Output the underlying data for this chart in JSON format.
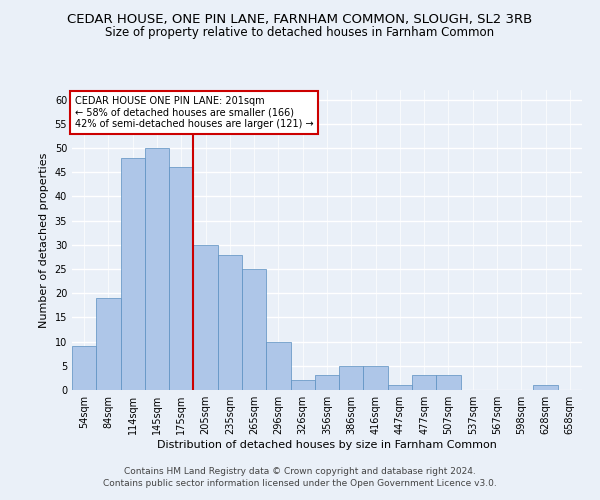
{
  "title": "CEDAR HOUSE, ONE PIN LANE, FARNHAM COMMON, SLOUGH, SL2 3RB",
  "subtitle": "Size of property relative to detached houses in Farnham Common",
  "xlabel": "Distribution of detached houses by size in Farnham Common",
  "ylabel": "Number of detached properties",
  "categories": [
    "54sqm",
    "84sqm",
    "114sqm",
    "145sqm",
    "175sqm",
    "205sqm",
    "235sqm",
    "265sqm",
    "296sqm",
    "326sqm",
    "356sqm",
    "386sqm",
    "416sqm",
    "447sqm",
    "477sqm",
    "507sqm",
    "537sqm",
    "567sqm",
    "598sqm",
    "628sqm",
    "658sqm"
  ],
  "values": [
    9,
    19,
    48,
    50,
    46,
    30,
    28,
    25,
    10,
    2,
    3,
    5,
    5,
    1,
    3,
    3,
    0,
    0,
    0,
    1,
    0
  ],
  "bar_color": "#aec6e8",
  "bar_edge_color": "#5a8fc0",
  "annotation_text": "CEDAR HOUSE ONE PIN LANE: 201sqm\n← 58% of detached houses are smaller (166)\n42% of semi-detached houses are larger (121) →",
  "annotation_box_color": "#ffffff",
  "annotation_box_edge": "#cc0000",
  "vline_color": "#cc0000",
  "ylim": [
    0,
    62
  ],
  "yticks": [
    0,
    5,
    10,
    15,
    20,
    25,
    30,
    35,
    40,
    45,
    50,
    55,
    60
  ],
  "footer1": "Contains HM Land Registry data © Crown copyright and database right 2024.",
  "footer2": "Contains public sector information licensed under the Open Government Licence v3.0.",
  "background_color": "#eaf0f8",
  "grid_color": "#ffffff",
  "title_fontsize": 9.5,
  "subtitle_fontsize": 8.5,
  "ylabel_fontsize": 8,
  "xlabel_fontsize": 8,
  "tick_fontsize": 7,
  "annotation_fontsize": 7,
  "footer_fontsize": 6.5
}
